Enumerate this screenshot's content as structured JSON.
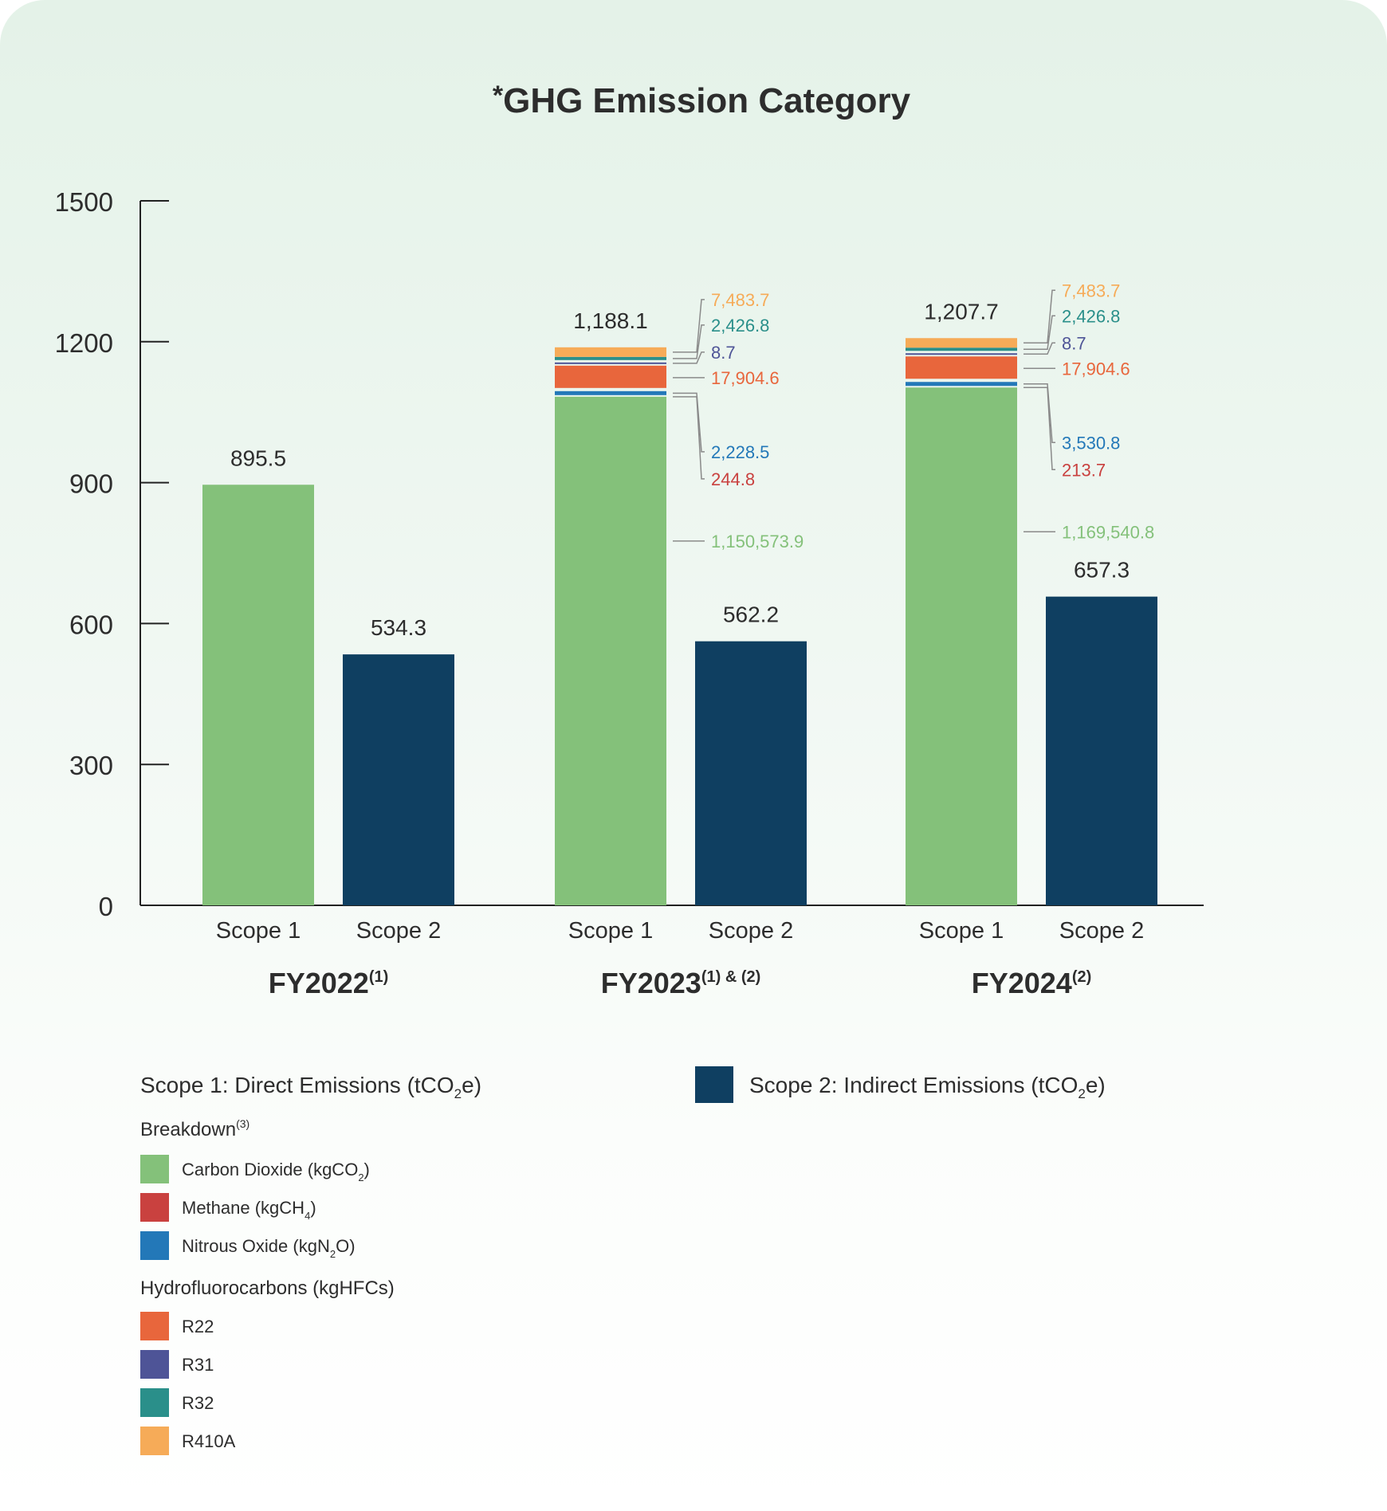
{
  "chart_data": {
    "type": "bar",
    "title": "GHG Emission Category",
    "title_prefix": "*",
    "ylim": [
      0,
      1500
    ],
    "yticks": [
      "0",
      "300",
      "600",
      "900",
      "1200",
      "1500"
    ],
    "grid": false,
    "groups": [
      {
        "label": "FY2022",
        "label_sup": "(1)",
        "bars": [
          {
            "category": "Scope 1",
            "value": 895.5,
            "value_label": "895.5",
            "color": "#84c17a"
          },
          {
            "category": "Scope 2",
            "value": 534.3,
            "value_label": "534.3",
            "color": "#0f3f61"
          }
        ]
      },
      {
        "label": "FY2023",
        "label_sup": "(1) & (2)",
        "bars": [
          {
            "category": "Scope 1",
            "value": 1188.1,
            "value_label": "1,188.1",
            "color": "#84c17a",
            "breakdown": [
              {
                "name": "Carbon Dioxide",
                "label": "1,150,573.9",
                "color": "#84c17a"
              },
              {
                "name": "Methane",
                "label": "244.8",
                "color": "#c9413f"
              },
              {
                "name": "Nitrous Oxide",
                "label": "2,228.5",
                "color": "#2378b8"
              },
              {
                "name": "R22",
                "label": "17,904.6",
                "color": "#e8663c"
              },
              {
                "name": "R31",
                "label": "8.7",
                "color": "#4e5497"
              },
              {
                "name": "R32",
                "label": "2,426.8",
                "color": "#2a8f8a"
              },
              {
                "name": "R410A",
                "label": "7,483.7",
                "color": "#f6ab58"
              }
            ]
          },
          {
            "category": "Scope 2",
            "value": 562.2,
            "value_label": "562.2",
            "color": "#0f3f61"
          }
        ]
      },
      {
        "label": "FY2024",
        "label_sup": "(2)",
        "bars": [
          {
            "category": "Scope 1",
            "value": 1207.7,
            "value_label": "1,207.7",
            "color": "#84c17a",
            "breakdown": [
              {
                "name": "Carbon Dioxide",
                "label": "1,169,540.8",
                "color": "#84c17a"
              },
              {
                "name": "Methane",
                "label": "213.7",
                "color": "#c9413f"
              },
              {
                "name": "Nitrous Oxide",
                "label": "3,530.8",
                "color": "#2378b8"
              },
              {
                "name": "R22",
                "label": "17,904.6",
                "color": "#e8663c"
              },
              {
                "name": "R31",
                "label": "8.7",
                "color": "#4e5497"
              },
              {
                "name": "R32",
                "label": "2,426.8",
                "color": "#2a8f8a"
              },
              {
                "name": "R410A",
                "label": "7,483.7",
                "color": "#f6ab58"
              }
            ]
          },
          {
            "category": "Scope 2",
            "value": 657.3,
            "value_label": "657.3",
            "color": "#0f3f61"
          }
        ]
      }
    ],
    "legend": {
      "scope1_label": "Scope 1: Direct Emissions (tCO",
      "scope1_sub": "2",
      "scope1_tail": "e)",
      "scope2_label": "Scope 2: Indirect Emissions (tCO",
      "scope2_sub": "2",
      "scope2_tail": "e)",
      "scope2_color": "#0f3f61",
      "breakdown_heading": "Breakdown",
      "breakdown_sup": "(3)",
      "hfc_heading": "Hydrofluorocarbons (kgHFCs)",
      "breakdown_items": [
        {
          "label": "Carbon Dioxide (kgCO",
          "sub": "2",
          "tail": ")",
          "color": "#84c17a"
        },
        {
          "label": "Methane (kgCH",
          "sub": "4",
          "tail": ")",
          "color": "#c9413f"
        },
        {
          "label": "Nitrous Oxide (kgN",
          "sub": "2",
          "tail": "O)",
          "color": "#2378b8"
        }
      ],
      "hfc_items": [
        {
          "label": "R22",
          "color": "#e8663c"
        },
        {
          "label": "R31",
          "color": "#4e5497"
        },
        {
          "label": "R32",
          "color": "#2a8f8a"
        },
        {
          "label": "R410A",
          "color": "#f6ab58"
        }
      ]
    }
  }
}
